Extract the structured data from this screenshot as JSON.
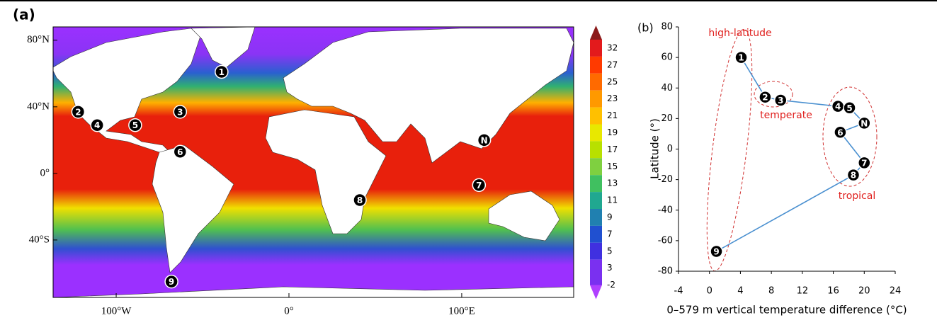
{
  "chart_data": [
    {
      "type": "map",
      "title": "(a)",
      "xlim": [
        -136.5,
        164.8
      ],
      "ylim": [
        -74.5,
        88
      ],
      "xticks": [
        {
          "value": -100,
          "label": "100°W"
        },
        {
          "value": 0,
          "label": "0°"
        },
        {
          "value": 100,
          "label": "100°E"
        }
      ],
      "yticks": [
        {
          "value": 80,
          "label": "80°N"
        },
        {
          "value": 40,
          "label": "40°N"
        },
        {
          "value": 0,
          "label": "0°"
        },
        {
          "value": -40,
          "label": "40°S"
        }
      ],
      "points": {
        "labels": [
          "1",
          "2",
          "3",
          "4",
          "5",
          "6",
          "N",
          "7",
          "8",
          "9"
        ],
        "lon": [
          -39,
          -122,
          -63,
          -111,
          -89,
          -63,
          113,
          110,
          41,
          -68
        ],
        "lat": [
          61,
          37,
          37,
          29,
          29,
          13,
          20,
          -7,
          -16,
          -65
        ]
      },
      "colorbar": {
        "ticks": [
          32,
          27,
          25,
          23,
          21,
          19,
          17,
          15,
          13,
          11,
          9,
          7,
          5,
          3,
          -2
        ],
        "colors": [
          "#8b1a1a",
          "#e31a1c",
          "#ff3a00",
          "#ff6a00",
          "#ff9900",
          "#ffc000",
          "#e8e800",
          "#b8e000",
          "#7fd040",
          "#40c060",
          "#20a890",
          "#2080b0",
          "#2050d0",
          "#4030e0",
          "#7a30f0",
          "#b040ff"
        ]
      }
    },
    {
      "type": "line",
      "title": "(b)",
      "x_label": "0–579 m vertical temperature difference (°C)",
      "y_label": "Latitude (°)",
      "xlim": [
        -4,
        24
      ],
      "ylim": [
        -80,
        80
      ],
      "xticks": [
        -4,
        0,
        4,
        8,
        12,
        16,
        20,
        24
      ],
      "yticks": [
        -80,
        -60,
        -40,
        -20,
        0,
        20,
        40,
        60,
        80
      ],
      "x": [
        4.1,
        7.2,
        9.2,
        16.6,
        18.1,
        20.0,
        16.9,
        20.0,
        18.6,
        0.9
      ],
      "series": [
        {
          "color": "#4a90d0",
          "values": [
            60,
            34,
            32,
            28,
            27,
            17,
            11,
            -9,
            -17,
            -67
          ],
          "point_labels": [
            "1",
            "2",
            "3",
            "4",
            "5",
            "N",
            "6",
            "7",
            "8",
            "9"
          ]
        }
      ],
      "annotations": [
        "high-latitude",
        "temperate",
        "tropical"
      ]
    }
  ]
}
